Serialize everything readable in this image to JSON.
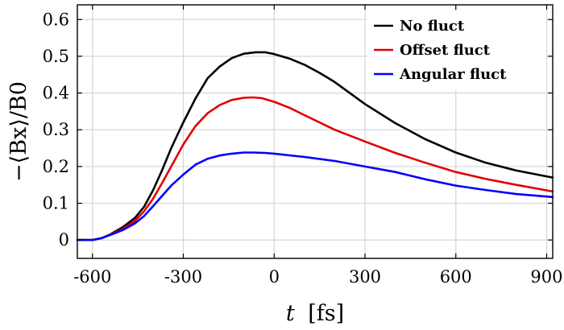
{
  "chart_data": {
    "type": "line",
    "xlabel": "t [fs]",
    "xlabel_var": "t",
    "xlabel_unit": "[fs]",
    "ylabel": "−⟨Bx⟩/B0",
    "xlim": [
      -650,
      920
    ],
    "ylim": [
      -0.05,
      0.64
    ],
    "xticks": [
      -600,
      -300,
      0,
      300,
      600,
      900
    ],
    "xtick_labels": [
      "-600",
      "-300",
      "0",
      "300",
      "600",
      "900"
    ],
    "yticks": [
      0,
      0.1,
      0.2,
      0.3,
      0.4,
      0.5,
      0.6
    ],
    "ytick_labels": [
      "0",
      "0.1",
      "0.2",
      "0.3",
      "0.4",
      "0.5",
      "0.6"
    ],
    "grid": true,
    "legend_position": "top-right",
    "series": [
      {
        "name": "No fluct",
        "color": "#000000",
        "points": [
          [
            -650,
            0
          ],
          [
            -600,
            0
          ],
          [
            -570,
            0.005
          ],
          [
            -540,
            0.016
          ],
          [
            -500,
            0.035
          ],
          [
            -460,
            0.06
          ],
          [
            -430,
            0.09
          ],
          [
            -400,
            0.135
          ],
          [
            -370,
            0.19
          ],
          [
            -340,
            0.25
          ],
          [
            -300,
            0.32
          ],
          [
            -260,
            0.385
          ],
          [
            -220,
            0.44
          ],
          [
            -180,
            0.472
          ],
          [
            -140,
            0.495
          ],
          [
            -100,
            0.507
          ],
          [
            -60,
            0.511
          ],
          [
            -30,
            0.511
          ],
          [
            0,
            0.506
          ],
          [
            50,
            0.494
          ],
          [
            100,
            0.477
          ],
          [
            150,
            0.455
          ],
          [
            200,
            0.43
          ],
          [
            300,
            0.37
          ],
          [
            400,
            0.318
          ],
          [
            500,
            0.274
          ],
          [
            600,
            0.238
          ],
          [
            700,
            0.21
          ],
          [
            800,
            0.189
          ],
          [
            920,
            0.17
          ]
        ]
      },
      {
        "name": "Offset fluct",
        "color": "#e00000",
        "points": [
          [
            -650,
            0
          ],
          [
            -600,
            0
          ],
          [
            -570,
            0.005
          ],
          [
            -540,
            0.015
          ],
          [
            -500,
            0.03
          ],
          [
            -460,
            0.052
          ],
          [
            -430,
            0.078
          ],
          [
            -400,
            0.112
          ],
          [
            -370,
            0.155
          ],
          [
            -340,
            0.2
          ],
          [
            -300,
            0.26
          ],
          [
            -260,
            0.31
          ],
          [
            -220,
            0.345
          ],
          [
            -180,
            0.367
          ],
          [
            -140,
            0.381
          ],
          [
            -100,
            0.387
          ],
          [
            -70,
            0.388
          ],
          [
            -40,
            0.386
          ],
          [
            0,
            0.376
          ],
          [
            50,
            0.36
          ],
          [
            100,
            0.34
          ],
          [
            200,
            0.3
          ],
          [
            300,
            0.268
          ],
          [
            400,
            0.237
          ],
          [
            500,
            0.21
          ],
          [
            600,
            0.185
          ],
          [
            700,
            0.166
          ],
          [
            800,
            0.15
          ],
          [
            920,
            0.132
          ]
        ]
      },
      {
        "name": "Angular fluct",
        "color": "#0000ff",
        "points": [
          [
            -650,
            0
          ],
          [
            -600,
            0
          ],
          [
            -570,
            0.005
          ],
          [
            -540,
            0.014
          ],
          [
            -500,
            0.027
          ],
          [
            -460,
            0.045
          ],
          [
            -430,
            0.065
          ],
          [
            -400,
            0.092
          ],
          [
            -370,
            0.12
          ],
          [
            -340,
            0.148
          ],
          [
            -300,
            0.178
          ],
          [
            -260,
            0.205
          ],
          [
            -220,
            0.221
          ],
          [
            -180,
            0.23
          ],
          [
            -140,
            0.235
          ],
          [
            -100,
            0.238
          ],
          [
            -70,
            0.238
          ],
          [
            -30,
            0.237
          ],
          [
            0,
            0.235
          ],
          [
            100,
            0.226
          ],
          [
            200,
            0.215
          ],
          [
            300,
            0.2
          ],
          [
            400,
            0.185
          ],
          [
            500,
            0.165
          ],
          [
            600,
            0.148
          ],
          [
            700,
            0.136
          ],
          [
            800,
            0.125
          ],
          [
            920,
            0.117
          ]
        ]
      }
    ]
  }
}
